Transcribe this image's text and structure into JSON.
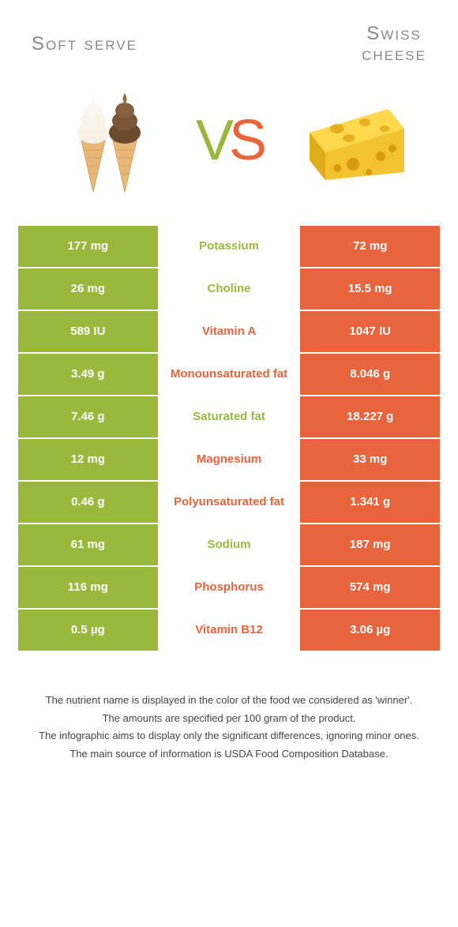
{
  "left_title": "Soft serve",
  "right_title_l1": "Swiss",
  "right_title_l2": "cheese",
  "vs_v": "V",
  "vs_s": "S",
  "colors": {
    "green": "#99b83c",
    "orange": "#e8643c",
    "title_gray": "#888888",
    "footer_text": "#444444",
    "background": "#ffffff"
  },
  "rows": [
    {
      "left": "177 mg",
      "label": "Potassium",
      "right": "72 mg",
      "winner": "green"
    },
    {
      "left": "26 mg",
      "label": "Choline",
      "right": "15.5 mg",
      "winner": "green"
    },
    {
      "left": "589 IU",
      "label": "Vitamin A",
      "right": "1047 IU",
      "winner": "orange"
    },
    {
      "left": "3.49 g",
      "label": "Monounsaturated fat",
      "right": "8.046 g",
      "winner": "orange"
    },
    {
      "left": "7.46 g",
      "label": "Saturated fat",
      "right": "18.227 g",
      "winner": "green"
    },
    {
      "left": "12 mg",
      "label": "Magnesium",
      "right": "33 mg",
      "winner": "orange"
    },
    {
      "left": "0.46 g",
      "label": "Polyunsaturated fat",
      "right": "1.341 g",
      "winner": "orange"
    },
    {
      "left": "61 mg",
      "label": "Sodium",
      "right": "187 mg",
      "winner": "green"
    },
    {
      "left": "116 mg",
      "label": "Phosphorus",
      "right": "574 mg",
      "winner": "orange"
    },
    {
      "left": "0.5 µg",
      "label": "Vitamin B12",
      "right": "3.06 µg",
      "winner": "orange"
    }
  ],
  "footer": [
    "The nutrient name is displayed in the color of the food we considered as 'winner'.",
    "The amounts are specified per 100 gram of the product.",
    "The infographic aims to display only the significant differences, ignoring minor ones.",
    "The main source of information is USDA Food Composition Database."
  ]
}
